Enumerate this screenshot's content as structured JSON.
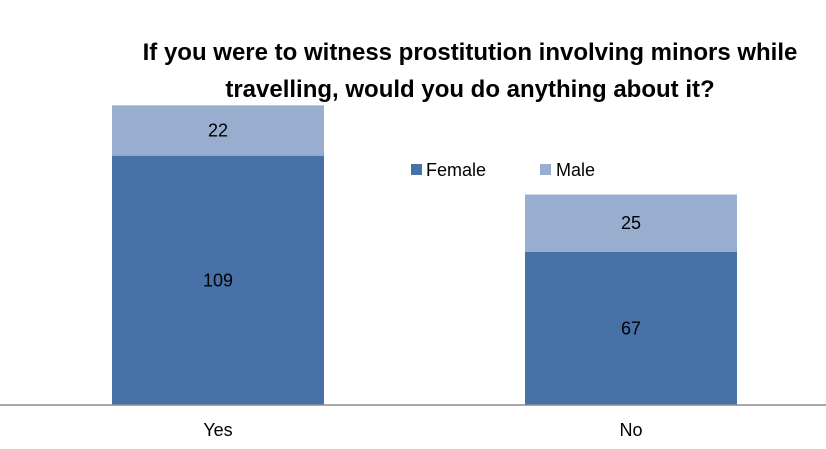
{
  "chart_data": {
    "type": "bar",
    "stacked": true,
    "title_lines": [
      "If you were to witness prostitution involving minors while",
      "travelling, would you do anything about it?"
    ],
    "categories": [
      "Yes",
      "No"
    ],
    "series": [
      {
        "name": "Female",
        "values": [
          109,
          67
        ],
        "color": "#4672a8"
      },
      {
        "name": "Male",
        "values": [
          22,
          25
        ],
        "color": "#99adcf"
      }
    ],
    "ylim": [
      0,
      153
    ],
    "grid": false,
    "legend_position": "top",
    "axis_color": "#8c8c8c",
    "label_color": "#000000"
  }
}
